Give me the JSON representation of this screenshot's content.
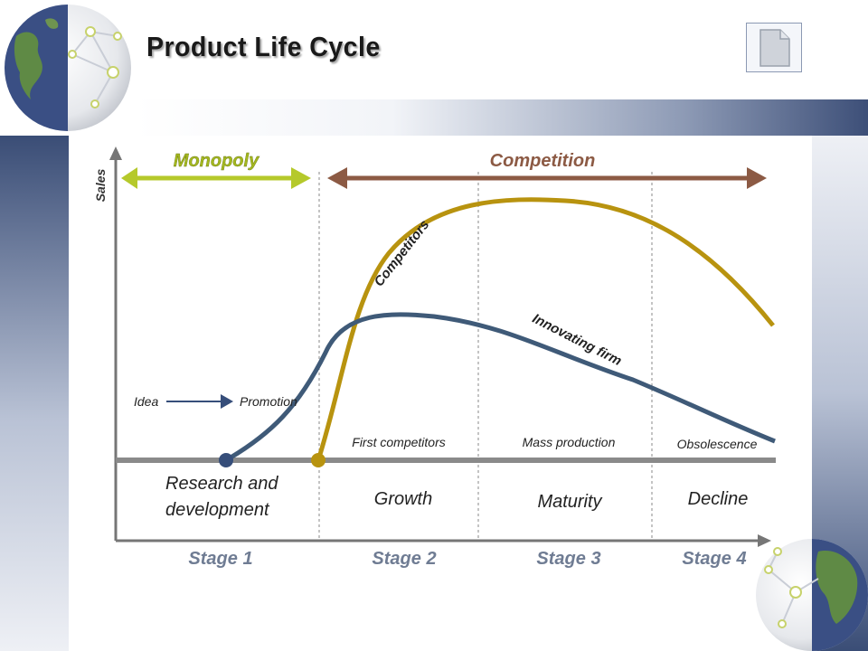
{
  "slide": {
    "title": "Product Life Cycle",
    "doc_icon": "document-icon",
    "globe_icon": "globe-network-icon"
  },
  "diagram": {
    "y_axis_label": "Sales",
    "phases": {
      "monopoly": "Monopoly",
      "competition": "Competition"
    },
    "curves": {
      "competitors": "Competitors",
      "innovating_firm": "Innovating firm"
    },
    "idea": "Idea",
    "promotion": "Promotion",
    "events": {
      "first_competitors": "First competitors",
      "mass_production": "Mass production",
      "obsolescence": "Obsolescence"
    },
    "stage_names": {
      "rd_line1": "Research and",
      "rd_line2": "development",
      "growth": "Growth",
      "maturity": "Maturity",
      "decline": "Decline"
    },
    "stages": [
      "Stage 1",
      "Stage 2",
      "Stage 3",
      "Stage 4"
    ]
  },
  "colors": {
    "navy": "#364e7a",
    "innovating_curve": "#3f5a78",
    "competitors_curve": "#b8930f",
    "monopoly_arrow": "#b5c92b",
    "monopoly_text": "#a4b81f",
    "competition_arrow": "#8c5a44",
    "competition_text": "#8c5a44",
    "stage_text": "#6f7c93",
    "axis": "#767676"
  }
}
